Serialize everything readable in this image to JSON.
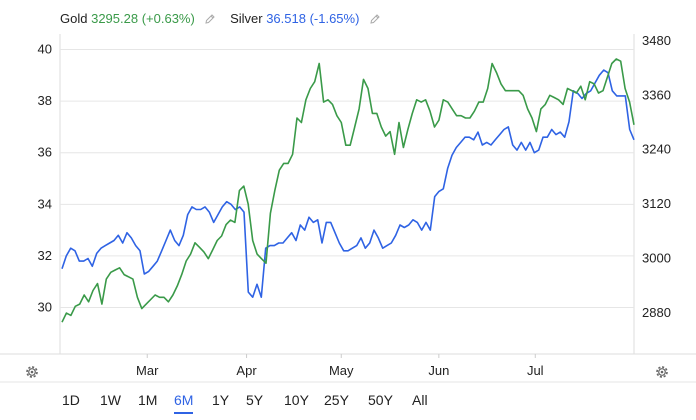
{
  "legend": {
    "gold_label": "Gold",
    "gold_value": "3295.28 (+0.63%)",
    "silver_label": "Silver",
    "silver_value": "36.518 (-1.65%)"
  },
  "ranges": {
    "items": [
      "1D",
      "1W",
      "1M",
      "6M",
      "1Y",
      "5Y",
      "10Y",
      "25Y",
      "50Y",
      "All"
    ],
    "active": "6M"
  },
  "icons": [
    "pencil-icon",
    "gear-icon"
  ],
  "colors": {
    "gold": "#3a9a49",
    "silver": "#2f63e4",
    "grid": "#e6e6e6",
    "text": "#222222"
  },
  "chart_data": {
    "type": "line",
    "x_axis": {
      "labels": [
        "Mar",
        "Apr",
        "May",
        "Jun",
        "Jul"
      ]
    },
    "left_axis": {
      "ticks": [
        "40",
        "38",
        "36",
        "34",
        "32",
        "30"
      ],
      "range": [
        28.2,
        40.6
      ]
    },
    "right_axis": {
      "ticks": [
        "3480",
        "3360",
        "3240",
        "3120",
        "3000",
        "2880"
      ],
      "range": [
        2790,
        3495
      ]
    },
    "grid": true,
    "series": [
      {
        "name": "Silver",
        "axis": "left",
        "color": "#2f63e4",
        "values": [
          31.5,
          32.0,
          32.3,
          32.2,
          31.8,
          31.8,
          31.9,
          31.6,
          32.1,
          32.3,
          32.4,
          32.5,
          32.6,
          32.8,
          32.5,
          32.9,
          32.7,
          32.4,
          32.2,
          31.3,
          31.4,
          31.6,
          31.8,
          32.2,
          32.6,
          33.0,
          32.6,
          32.4,
          32.8,
          33.6,
          33.9,
          33.8,
          33.8,
          33.9,
          33.7,
          33.3,
          33.6,
          33.9,
          34.1,
          34.0,
          33.8,
          33.9,
          33.7,
          30.6,
          30.4,
          30.9,
          30.4,
          32.3,
          32.4,
          32.4,
          32.5,
          32.5,
          32.7,
          32.9,
          32.6,
          33.2,
          33.0,
          33.5,
          33.3,
          33.4,
          32.5,
          33.3,
          33.3,
          32.9,
          32.5,
          32.2,
          32.2,
          32.3,
          32.4,
          32.7,
          32.3,
          32.5,
          33.0,
          32.7,
          32.3,
          32.4,
          32.5,
          32.8,
          33.2,
          33.1,
          33.2,
          33.4,
          33.3,
          33.0,
          33.3,
          33.0,
          34.3,
          34.5,
          34.6,
          35.4,
          35.9,
          36.2,
          36.4,
          36.6,
          36.6,
          36.5,
          36.8,
          36.3,
          36.4,
          36.3,
          36.5,
          36.7,
          36.9,
          37.0,
          36.3,
          36.1,
          36.4,
          36.1,
          36.4,
          36.0,
          36.1,
          36.6,
          36.6,
          36.9,
          36.7,
          36.8,
          36.6,
          37.2,
          38.4,
          38.3,
          38.1,
          38.3,
          38.4,
          38.7,
          39.0,
          39.2,
          39.1,
          38.4,
          38.2,
          38.2,
          38.2,
          36.9,
          36.5
        ]
      },
      {
        "name": "Gold",
        "axis": "right",
        "color": "#3a9a49",
        "values": [
          2860,
          2880,
          2875,
          2895,
          2900,
          2920,
          2905,
          2930,
          2945,
          2900,
          2955,
          2970,
          2975,
          2980,
          2965,
          2960,
          2955,
          2915,
          2890,
          2900,
          2910,
          2920,
          2915,
          2915,
          2905,
          2920,
          2940,
          2965,
          2995,
          3010,
          3035,
          3025,
          3015,
          3000,
          3020,
          3040,
          3050,
          3075,
          3085,
          3080,
          3150,
          3160,
          3120,
          3040,
          3010,
          3000,
          2990,
          3100,
          3150,
          3195,
          3210,
          3210,
          3230,
          3310,
          3300,
          3350,
          3375,
          3390,
          3430,
          3345,
          3350,
          3340,
          3315,
          3300,
          3250,
          3250,
          3290,
          3330,
          3395,
          3375,
          3320,
          3320,
          3290,
          3270,
          3280,
          3230,
          3300,
          3245,
          3285,
          3320,
          3350,
          3345,
          3350,
          3325,
          3290,
          3305,
          3350,
          3345,
          3330,
          3315,
          3315,
          3310,
          3310,
          3325,
          3345,
          3345,
          3375,
          3430,
          3410,
          3385,
          3370,
          3370,
          3370,
          3370,
          3360,
          3330,
          3310,
          3280,
          3330,
          3340,
          3360,
          3355,
          3350,
          3340,
          3375,
          3370,
          3365,
          3380,
          3350,
          3390,
          3385,
          3365,
          3370,
          3400,
          3430,
          3440,
          3435,
          3375,
          3345,
          3295
        ]
      }
    ]
  }
}
